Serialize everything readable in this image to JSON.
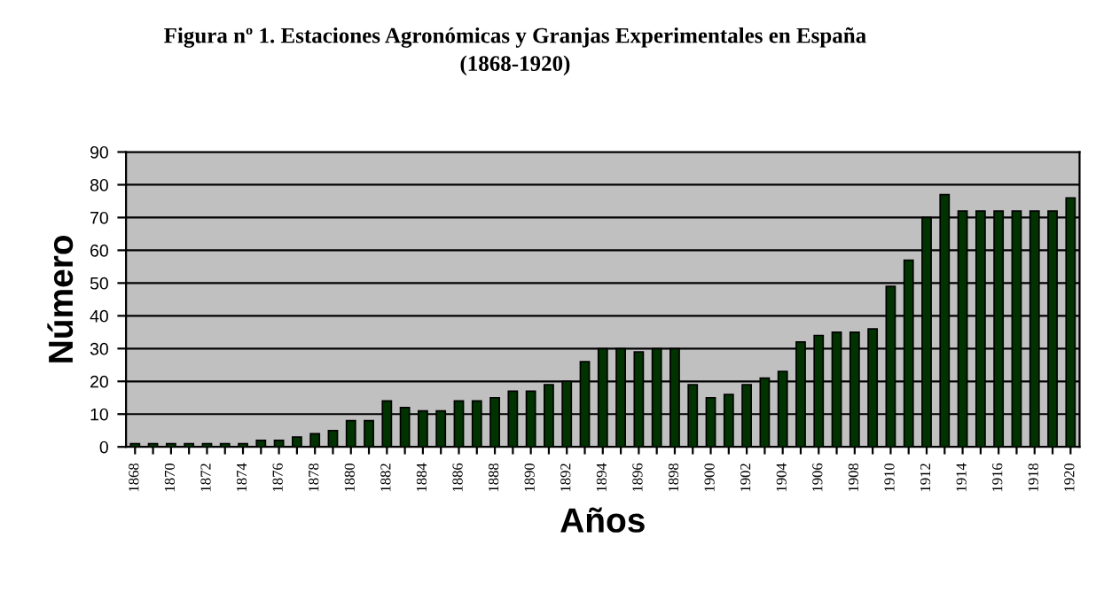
{
  "chart_data": {
    "type": "bar",
    "title": "Figura nº 1. Estaciones Agronómicas y Granjas Experimentales en España\n(1868-1920)",
    "xlabel": "Años",
    "ylabel": "Número",
    "categories": [
      "1868",
      null,
      "1870",
      null,
      "1872",
      null,
      "1874",
      null,
      "1876",
      null,
      "1878",
      null,
      "1880",
      null,
      "1882",
      null,
      "1884",
      null,
      "1886",
      null,
      "1888",
      null,
      "1890",
      null,
      "1892",
      null,
      "1894",
      null,
      "1896",
      null,
      "1898",
      null,
      "1900",
      null,
      "1902",
      null,
      "1904",
      null,
      "1906",
      null,
      "1908",
      null,
      "1910",
      null,
      "1912",
      null,
      "1914",
      null,
      "1916",
      null,
      "1918",
      null,
      "1920"
    ],
    "values": [
      1,
      1,
      1,
      1,
      1,
      1,
      1,
      2,
      2,
      3,
      4,
      5,
      8,
      8,
      14,
      12,
      11,
      11,
      14,
      14,
      15,
      17,
      17,
      19,
      20,
      26,
      30,
      30,
      29,
      30,
      30,
      19,
      15,
      16,
      19,
      21,
      23,
      32,
      34,
      35,
      35,
      36,
      49,
      57,
      70,
      77,
      72,
      72,
      72,
      72,
      72,
      72,
      76
    ],
    "color": "#003300",
    "ylim": [
      0,
      90
    ],
    "yticks": [
      0,
      10,
      20,
      30,
      40,
      50,
      60,
      70,
      80,
      90
    ],
    "grid": "y"
  }
}
